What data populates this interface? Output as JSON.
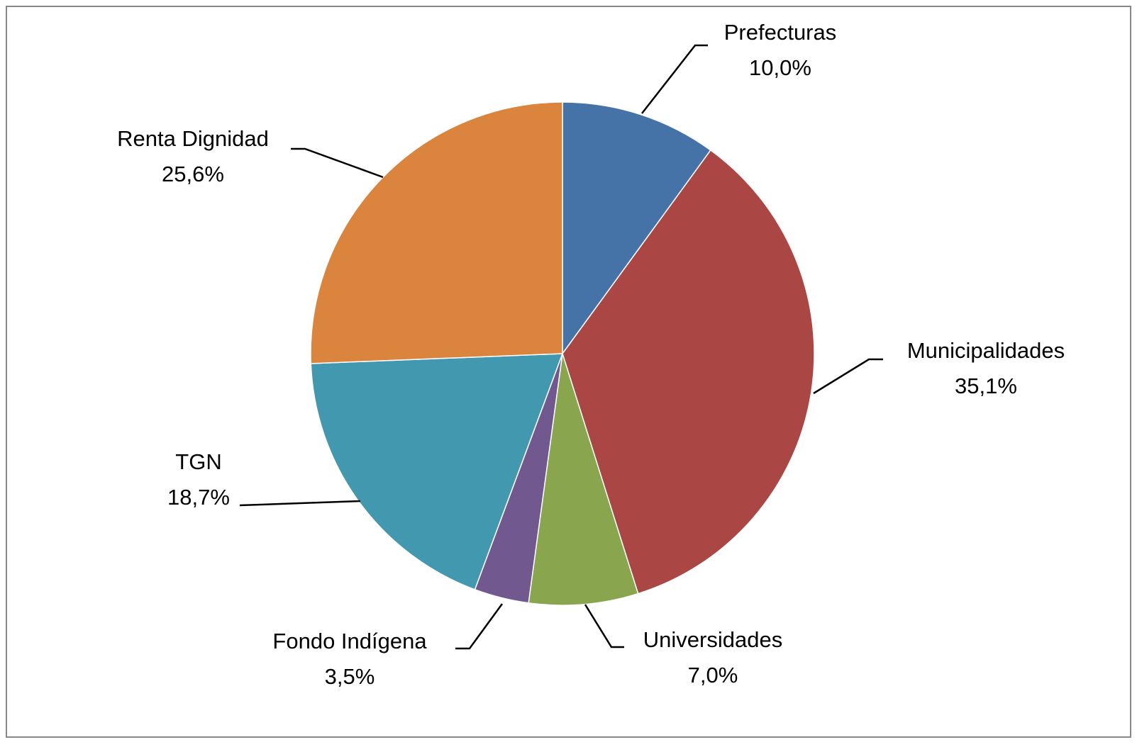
{
  "chart_data": {
    "type": "pie",
    "categories": [
      "Prefecturas",
      "Municipalidades",
      "Universidades",
      "Fondo Indígena",
      "TGN",
      "Renta Dignidad"
    ],
    "values": [
      10.0,
      35.1,
      7.0,
      3.5,
      18.7,
      25.6
    ],
    "value_labels": [
      "10,0%",
      "35,1%",
      "7,0%",
      "3,5%",
      "18,7%",
      "25,6%"
    ],
    "colors": [
      "#4572a7",
      "#aa4643",
      "#89a54e",
      "#71588f",
      "#4198af",
      "#db843d"
    ]
  }
}
